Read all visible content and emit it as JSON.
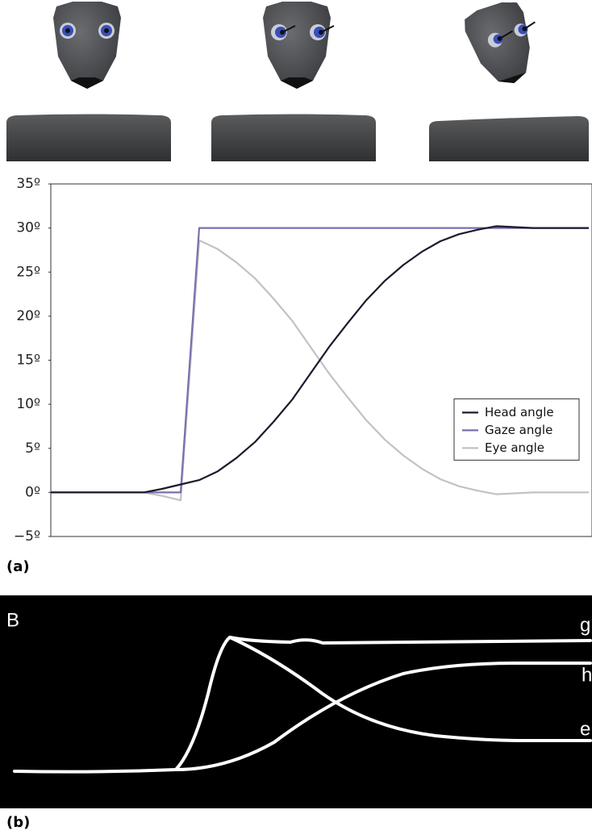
{
  "chart_data": {
    "type": "line",
    "categories": [
      null,
      null,
      null,
      null,
      null,
      null,
      null,
      null,
      null,
      null,
      null,
      null,
      null,
      null,
      null,
      null,
      null,
      null,
      null,
      null,
      null,
      null,
      null,
      null,
      null,
      null,
      null,
      null,
      null,
      null
    ],
    "series": [
      {
        "name": "Head angle",
        "color": "#1c1a2b",
        "values": [
          0,
          0,
          0,
          0,
          0,
          0,
          0.4,
          0.9,
          1.4,
          2.4,
          3.9,
          5.7,
          8.0,
          10.5,
          13.5,
          16.5,
          19.2,
          21.8,
          24.0,
          25.8,
          27.3,
          28.5,
          29.3,
          29.8,
          30.2,
          30.1,
          30,
          30,
          30,
          30
        ]
      },
      {
        "name": "Gaze angle",
        "color": "#7b6fae",
        "values": [
          0,
          0,
          0,
          0,
          0,
          0,
          0,
          0,
          30,
          30,
          30,
          30,
          30,
          30,
          30,
          30,
          30,
          30,
          30,
          30,
          30,
          30,
          30,
          30,
          30,
          30,
          30,
          30,
          30,
          30
        ]
      },
      {
        "name": "Eye angle",
        "color": "#c2c2c4",
        "values": [
          0,
          0,
          0,
          0,
          0,
          0,
          -0.4,
          -0.9,
          28.6,
          27.6,
          26.1,
          24.3,
          22.0,
          19.5,
          16.5,
          13.5,
          10.8,
          8.2,
          6.0,
          4.2,
          2.7,
          1.5,
          0.7,
          0.2,
          -0.2,
          -0.1,
          0,
          0,
          0,
          0
        ]
      }
    ],
    "ylim": [
      -5,
      35
    ],
    "yticks": [
      {
        "value": -5,
        "label": "−5º"
      },
      {
        "value": 0,
        "label": "0º"
      },
      {
        "value": 5,
        "label": "5º"
      },
      {
        "value": 10,
        "label": "10º"
      },
      {
        "value": 15,
        "label": "15º"
      },
      {
        "value": 20,
        "label": "20º"
      },
      {
        "value": 25,
        "label": "25º"
      },
      {
        "value": 30,
        "label": "30º"
      },
      {
        "value": 35,
        "label": "35º"
      }
    ],
    "legend": "lower right",
    "grid": false
  },
  "panel_a": {
    "label": "(a)"
  },
  "panel_b": {
    "letter": "B",
    "curve_labels": [
      "g",
      "h",
      "e"
    ],
    "label": "(b)"
  }
}
